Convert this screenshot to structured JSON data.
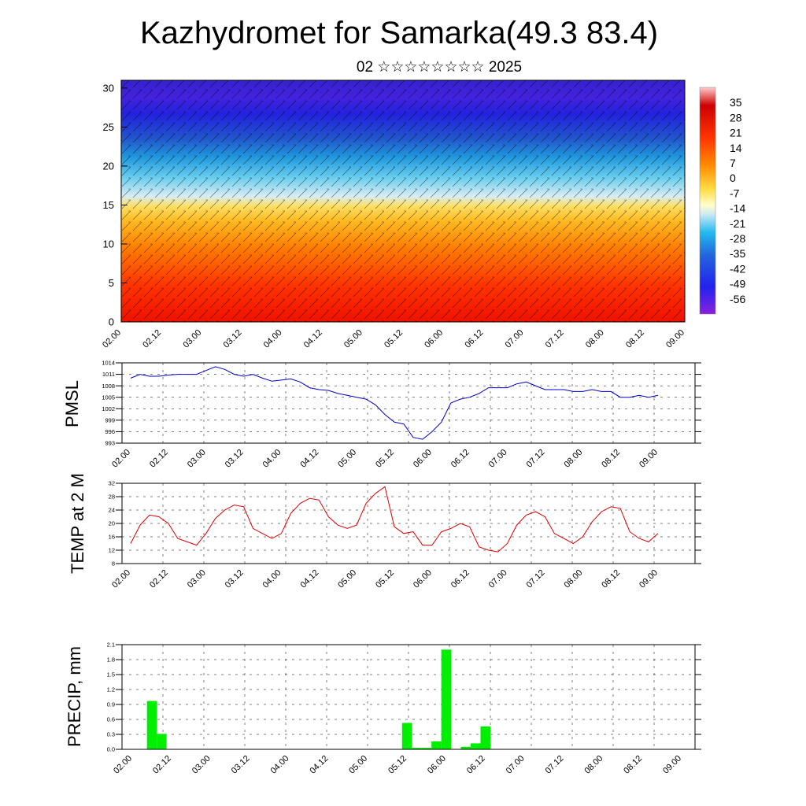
{
  "header": {
    "title": "Kazhydromet for Samarka(49.3 83.4)",
    "subtitle": "02 ☆☆☆☆☆☆☆☆ 2025"
  },
  "colors": {
    "pmsl_line": "#0000cc",
    "temp_line": "#dd0000",
    "precip_bar": "#00ee00"
  },
  "time_labels": [
    "02.00",
    "02.12",
    "03.00",
    "03.12",
    "04.00",
    "04.12",
    "05.00",
    "05.12",
    "06.00",
    "06.12",
    "07.00",
    "07.12",
    "08.00",
    "08.12",
    "09.00"
  ],
  "chart_data": [
    {
      "type": "heatmap",
      "name": "cross-section",
      "x_range": [
        0,
        14
      ],
      "ylim": [
        0,
        31
      ],
      "y_ticks": [
        0,
        5,
        10,
        15,
        20,
        25,
        30
      ],
      "colorbar": {
        "labels": [
          35,
          28,
          21,
          14,
          7,
          0,
          -7,
          -14,
          -21,
          -28,
          -35,
          -42,
          -49,
          -56
        ],
        "range": [
          -63,
          42
        ]
      }
    },
    {
      "type": "line",
      "name": "pmsl",
      "ylabel": "PMSL",
      "ylim": [
        993,
        1014
      ],
      "y_ticks": [
        993,
        996,
        999,
        1002,
        1005,
        1008,
        1011,
        1014
      ],
      "x": [
        0,
        0.25,
        0.5,
        0.75,
        1,
        1.25,
        1.5,
        1.75,
        2,
        2.25,
        2.5,
        2.75,
        3,
        3.25,
        3.5,
        3.75,
        4,
        4.25,
        4.5,
        4.75,
        5,
        5.25,
        5.5,
        5.75,
        6,
        6.25,
        6.5,
        6.75,
        7,
        7.25,
        7.5,
        7.75,
        8,
        8.25,
        8.5,
        8.75,
        9,
        9.25,
        9.5,
        9.75,
        10,
        10.25,
        10.5,
        10.75,
        11,
        11.25,
        11.5,
        11.75,
        12,
        12.25,
        12.5,
        12.75,
        13,
        13.25,
        13.5,
        13.75,
        14
      ],
      "values": [
        1010,
        1011,
        1010.5,
        1010.5,
        1010.8,
        1011,
        1011,
        1011,
        1012,
        1013,
        1012.3,
        1011,
        1010.5,
        1011,
        1010,
        1009.2,
        1009.5,
        1009.8,
        1009,
        1007.5,
        1007,
        1006.8,
        1006,
        1005.5,
        1005,
        1004.5,
        1003,
        1000.5,
        998.5,
        998,
        994.5,
        994,
        996,
        998.5,
        1003.5,
        1004.5,
        1005,
        1006,
        1007.5,
        1007.5,
        1007.5,
        1008.5,
        1009,
        1008,
        1007,
        1007,
        1007,
        1006.5,
        1006.5,
        1007,
        1006.5,
        1006.5,
        1005,
        1005,
        1005.5,
        1005,
        1005.5
      ]
    },
    {
      "type": "line",
      "name": "temperature",
      "ylabel": "TEMP at 2 M",
      "ylim": [
        8,
        32
      ],
      "y_ticks": [
        8,
        12,
        16,
        20,
        24,
        28,
        32
      ],
      "x": [
        0,
        0.25,
        0.5,
        0.75,
        1,
        1.25,
        1.5,
        1.75,
        2,
        2.25,
        2.5,
        2.75,
        3,
        3.25,
        3.5,
        3.75,
        4,
        4.25,
        4.5,
        4.75,
        5,
        5.25,
        5.5,
        5.75,
        6,
        6.25,
        6.5,
        6.75,
        7,
        7.25,
        7.5,
        7.75,
        8,
        8.25,
        8.5,
        8.75,
        9,
        9.25,
        9.5,
        9.75,
        10,
        10.25,
        10.5,
        10.75,
        11,
        11.25,
        11.5,
        11.75,
        12,
        12.25,
        12.5,
        12.75,
        13,
        13.25,
        13.5,
        13.75,
        14
      ],
      "values": [
        14,
        19.5,
        22.5,
        22,
        20,
        15.5,
        14.5,
        13.5,
        17,
        21.5,
        24,
        25.5,
        25,
        18.5,
        17,
        15.5,
        17,
        23,
        26,
        27.5,
        27,
        22,
        19.5,
        18.5,
        19.5,
        26,
        29,
        31,
        19,
        17,
        17.5,
        13.5,
        13.5,
        17.5,
        18.5,
        20,
        19,
        13,
        12,
        11.5,
        14,
        19.5,
        22.5,
        23.5,
        22,
        17,
        15.5,
        14,
        16,
        20.5,
        23.5,
        25,
        24.5,
        17.5,
        15.5,
        14.5,
        17
      ]
    },
    {
      "type": "bar",
      "name": "precipitation",
      "ylabel": "PRECIP, mm",
      "ylim": [
        0,
        2.1
      ],
      "y_ticks": [
        "0.0",
        "0.3",
        "0.6",
        "0.9",
        "1.2",
        "1.5",
        "1.8",
        "2.1"
      ],
      "x": [
        0.5,
        0.75,
        7.0,
        7.25,
        7.5,
        7.75,
        8.0,
        8.5,
        8.75,
        9.0
      ],
      "values": [
        0.97,
        0.31,
        0.53,
        0.03,
        0.03,
        0.16,
        2.0,
        0.05,
        0.12,
        0.46
      ]
    }
  ]
}
